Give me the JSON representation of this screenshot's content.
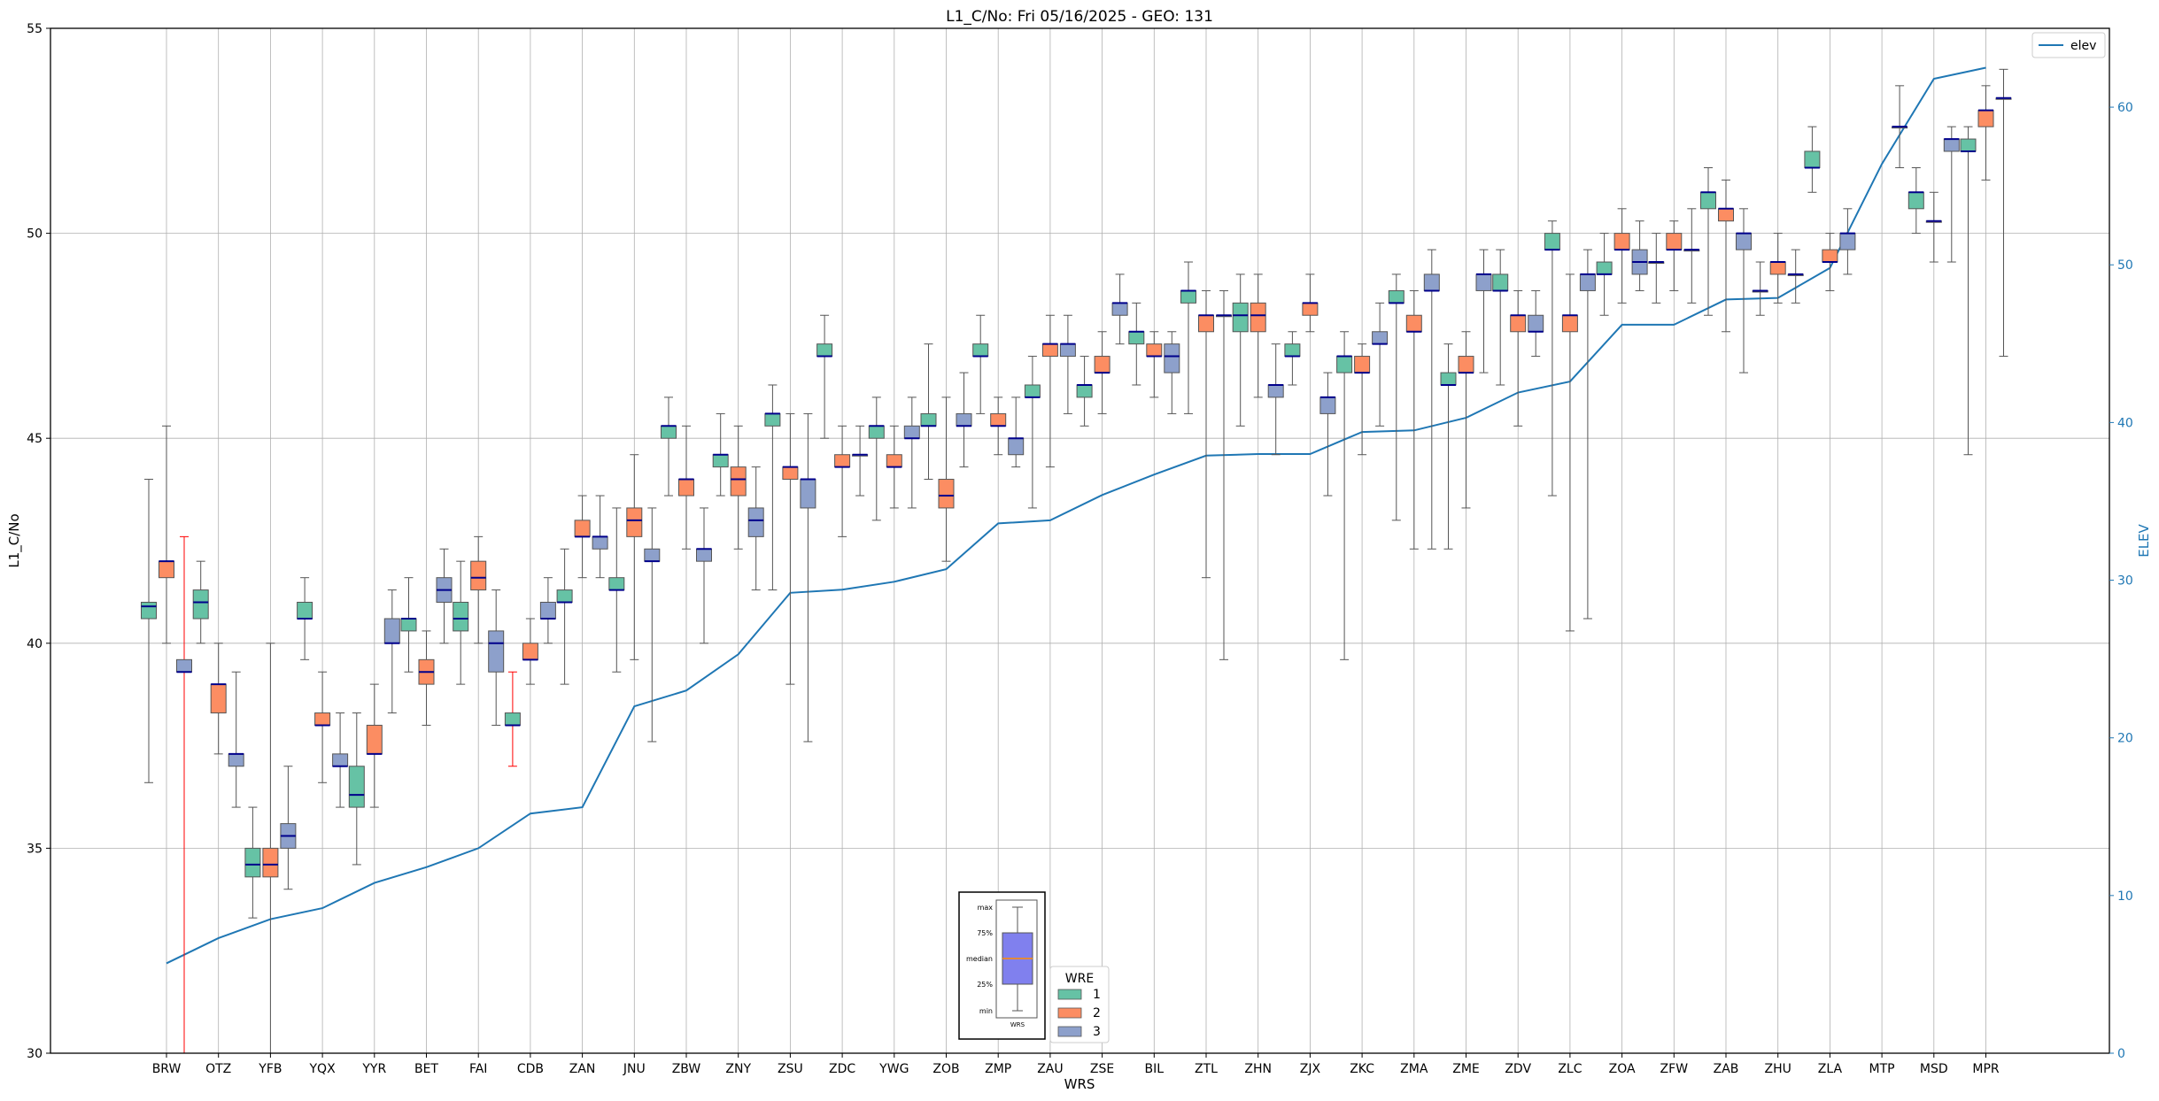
{
  "chart_data": {
    "type": "box",
    "title": "L1_C/No: Fri 05/16/2025 - GEO: 131",
    "xlabel": "WRS",
    "ylabel": "L1_C/No",
    "y2label": "ELEV",
    "ylim": [
      30,
      55
    ],
    "y2lim": [
      0,
      65
    ],
    "yticks": [
      30,
      35,
      40,
      45,
      50,
      55
    ],
    "y2ticks": [
      0,
      10,
      20,
      30,
      40,
      50,
      60
    ],
    "grid": true,
    "categories": [
      "BRW",
      "OTZ",
      "YFB",
      "YQX",
      "YYR",
      "BET",
      "FAI",
      "CDB",
      "ZAN",
      "JNU",
      "ZBW",
      "ZNY",
      "ZSU",
      "ZDC",
      "YWG",
      "ZOB",
      "ZMP",
      "ZAU",
      "ZSE",
      "BIL",
      "ZTL",
      "ZHN",
      "ZJX",
      "ZKC",
      "ZMA",
      "ZME",
      "ZDV",
      "ZLC",
      "ZOA",
      "ZFW",
      "ZAB",
      "ZHU",
      "ZLA",
      "MTP",
      "MSD",
      "MPR"
    ],
    "group_legend": {
      "title": "WRE",
      "placement": "bottom-center",
      "entries": [
        {
          "label": "1",
          "color": "#66c2a5"
        },
        {
          "label": "2",
          "color": "#fc8d62"
        },
        {
          "label": "3",
          "color": "#8da0cb"
        }
      ]
    },
    "line_legend": {
      "label": "elev",
      "color": "#1f77b4",
      "placement": "top-right"
    },
    "elev_series": {
      "name": "elev",
      "values": [
        5.7,
        7.3,
        8.5,
        9.2,
        10.8,
        11.8,
        13.0,
        15.2,
        15.6,
        22.0,
        23.0,
        25.3,
        29.2,
        29.4,
        29.9,
        30.7,
        33.6,
        33.8,
        35.4,
        36.7,
        37.9,
        38.0,
        38.0,
        39.4,
        39.5,
        40.3,
        41.9,
        42.6,
        46.2,
        46.2,
        47.8,
        47.9,
        49.8,
        56.4,
        61.8,
        62.5
      ]
    },
    "boxes": [
      {
        "station": "BRW",
        "wre": 1,
        "min": 36.6,
        "q1": 40.6,
        "median": 40.9,
        "q3": 41.0,
        "max": 44.0
      },
      {
        "station": "BRW",
        "wre": 2,
        "min": 40.0,
        "q1": 41.6,
        "median": 42.0,
        "q3": 42.0,
        "max": 45.3
      },
      {
        "station": "BRW",
        "wre": 3,
        "min": 30.0,
        "q1": 39.3,
        "median": 39.3,
        "q3": 39.6,
        "max": 42.6,
        "whisker_color": "#ff0000"
      },
      {
        "station": "OTZ",
        "wre": 1,
        "min": 40.0,
        "q1": 40.6,
        "median": 41.0,
        "q3": 41.3,
        "max": 42.0
      },
      {
        "station": "OTZ",
        "wre": 2,
        "min": 37.3,
        "q1": 38.3,
        "median": 39.0,
        "q3": 39.0,
        "max": 40.0
      },
      {
        "station": "OTZ",
        "wre": 3,
        "min": 36.0,
        "q1": 37.0,
        "median": 37.3,
        "q3": 37.3,
        "max": 39.3
      },
      {
        "station": "YFB",
        "wre": 1,
        "min": 33.3,
        "q1": 34.3,
        "median": 34.6,
        "q3": 35.0,
        "max": 36.0
      },
      {
        "station": "YFB",
        "wre": 2,
        "min": 30.0,
        "q1": 34.3,
        "median": 34.6,
        "q3": 35.0,
        "max": 40.0
      },
      {
        "station": "YFB",
        "wre": 3,
        "min": 34.0,
        "q1": 35.0,
        "median": 35.3,
        "q3": 35.6,
        "max": 37.0
      },
      {
        "station": "YQX",
        "wre": 1,
        "min": 39.6,
        "q1": 40.6,
        "median": 40.6,
        "q3": 41.0,
        "max": 41.6
      },
      {
        "station": "YQX",
        "wre": 2,
        "min": 36.6,
        "q1": 38.0,
        "median": 38.0,
        "q3": 38.3,
        "max": 39.3
      },
      {
        "station": "YQX",
        "wre": 3,
        "min": 36.0,
        "q1": 37.0,
        "median": 37.0,
        "q3": 37.3,
        "max": 38.3
      },
      {
        "station": "YYR",
        "wre": 1,
        "min": 34.6,
        "q1": 36.0,
        "median": 36.3,
        "q3": 37.0,
        "max": 38.3
      },
      {
        "station": "YYR",
        "wre": 2,
        "min": 36.0,
        "q1": 37.3,
        "median": 37.3,
        "q3": 38.0,
        "max": 39.0
      },
      {
        "station": "YYR",
        "wre": 3,
        "min": 38.3,
        "q1": 40.0,
        "median": 40.0,
        "q3": 40.6,
        "max": 41.3
      },
      {
        "station": "BET",
        "wre": 1,
        "min": 39.3,
        "q1": 40.3,
        "median": 40.6,
        "q3": 40.6,
        "max": 41.6
      },
      {
        "station": "BET",
        "wre": 2,
        "min": 38.0,
        "q1": 39.0,
        "median": 39.3,
        "q3": 39.6,
        "max": 40.3
      },
      {
        "station": "BET",
        "wre": 3,
        "min": 40.0,
        "q1": 41.0,
        "median": 41.3,
        "q3": 41.6,
        "max": 42.3
      },
      {
        "station": "FAI",
        "wre": 1,
        "min": 39.0,
        "q1": 40.3,
        "median": 40.6,
        "q3": 41.0,
        "max": 42.0
      },
      {
        "station": "FAI",
        "wre": 2,
        "min": 40.0,
        "q1": 41.3,
        "median": 41.6,
        "q3": 42.0,
        "max": 42.6
      },
      {
        "station": "FAI",
        "wre": 3,
        "min": 38.0,
        "q1": 39.3,
        "median": 40.0,
        "q3": 40.3,
        "max": 41.3
      },
      {
        "station": "CDB",
        "wre": 1,
        "min": 37.0,
        "q1": 38.0,
        "median": 38.0,
        "q3": 38.3,
        "max": 39.3,
        "whisker_color": "#ff0000"
      },
      {
        "station": "CDB",
        "wre": 2,
        "min": 39.0,
        "q1": 39.6,
        "median": 39.6,
        "q3": 40.0,
        "max": 40.6
      },
      {
        "station": "CDB",
        "wre": 3,
        "min": 40.0,
        "q1": 40.6,
        "median": 40.6,
        "q3": 41.0,
        "max": 41.6
      },
      {
        "station": "ZAN",
        "wre": 1,
        "min": 39.0,
        "q1": 41.0,
        "median": 41.0,
        "q3": 41.3,
        "max": 42.3
      },
      {
        "station": "ZAN",
        "wre": 2,
        "min": 41.6,
        "q1": 42.6,
        "median": 42.6,
        "q3": 43.0,
        "max": 43.6
      },
      {
        "station": "ZAN",
        "wre": 3,
        "min": 41.6,
        "q1": 42.3,
        "median": 42.6,
        "q3": 42.6,
        "max": 43.6
      },
      {
        "station": "JNU",
        "wre": 1,
        "min": 39.3,
        "q1": 41.3,
        "median": 41.3,
        "q3": 41.6,
        "max": 43.3
      },
      {
        "station": "JNU",
        "wre": 2,
        "min": 39.6,
        "q1": 42.6,
        "median": 43.0,
        "q3": 43.3,
        "max": 44.6
      },
      {
        "station": "JNU",
        "wre": 3,
        "min": 37.6,
        "q1": 42.0,
        "median": 42.0,
        "q3": 42.3,
        "max": 43.3
      },
      {
        "station": "ZBW",
        "wre": 1,
        "min": 43.6,
        "q1": 45.0,
        "median": 45.3,
        "q3": 45.3,
        "max": 46.0
      },
      {
        "station": "ZBW",
        "wre": 2,
        "min": 42.3,
        "q1": 43.6,
        "median": 44.0,
        "q3": 44.0,
        "max": 45.3
      },
      {
        "station": "ZBW",
        "wre": 3,
        "min": 40.0,
        "q1": 42.0,
        "median": 42.3,
        "q3": 42.3,
        "max": 43.3
      },
      {
        "station": "ZNY",
        "wre": 1,
        "min": 43.6,
        "q1": 44.3,
        "median": 44.6,
        "q3": 44.6,
        "max": 45.6
      },
      {
        "station": "ZNY",
        "wre": 2,
        "min": 42.3,
        "q1": 43.6,
        "median": 44.0,
        "q3": 44.3,
        "max": 45.3
      },
      {
        "station": "ZNY",
        "wre": 3,
        "min": 41.3,
        "q1": 42.6,
        "median": 43.0,
        "q3": 43.3,
        "max": 44.3
      },
      {
        "station": "ZSU",
        "wre": 1,
        "min": 41.3,
        "q1": 45.3,
        "median": 45.6,
        "q3": 45.6,
        "max": 46.3
      },
      {
        "station": "ZSU",
        "wre": 2,
        "min": 39.0,
        "q1": 44.0,
        "median": 44.3,
        "q3": 44.3,
        "max": 45.6
      },
      {
        "station": "ZSU",
        "wre": 3,
        "min": 37.6,
        "q1": 43.3,
        "median": 44.0,
        "q3": 44.0,
        "max": 45.6
      },
      {
        "station": "ZDC",
        "wre": 1,
        "min": 45.0,
        "q1": 47.0,
        "median": 47.0,
        "q3": 47.3,
        "max": 48.0
      },
      {
        "station": "ZDC",
        "wre": 2,
        "min": 42.6,
        "q1": 44.3,
        "median": 44.3,
        "q3": 44.6,
        "max": 45.3
      },
      {
        "station": "ZDC",
        "wre": 3,
        "min": 43.6,
        "q1": 44.6,
        "median": 44.6,
        "q3": 44.6,
        "max": 45.3
      },
      {
        "station": "YWG",
        "wre": 1,
        "min": 43.0,
        "q1": 45.0,
        "median": 45.3,
        "q3": 45.3,
        "max": 46.0
      },
      {
        "station": "YWG",
        "wre": 2,
        "min": 43.3,
        "q1": 44.3,
        "median": 44.3,
        "q3": 44.6,
        "max": 45.3
      },
      {
        "station": "YWG",
        "wre": 3,
        "min": 43.3,
        "q1": 45.0,
        "median": 45.0,
        "q3": 45.3,
        "max": 46.0
      },
      {
        "station": "ZOB",
        "wre": 1,
        "min": 44.0,
        "q1": 45.3,
        "median": 45.3,
        "q3": 45.6,
        "max": 47.3
      },
      {
        "station": "ZOB",
        "wre": 2,
        "min": 42.0,
        "q1": 43.3,
        "median": 43.6,
        "q3": 44.0,
        "max": 46.0
      },
      {
        "station": "ZOB",
        "wre": 3,
        "min": 44.3,
        "q1": 45.3,
        "median": 45.3,
        "q3": 45.6,
        "max": 46.6
      },
      {
        "station": "ZMP",
        "wre": 1,
        "min": 45.6,
        "q1": 47.0,
        "median": 47.0,
        "q3": 47.3,
        "max": 48.0
      },
      {
        "station": "ZMP",
        "wre": 2,
        "min": 44.6,
        "q1": 45.3,
        "median": 45.3,
        "q3": 45.6,
        "max": 46.0
      },
      {
        "station": "ZMP",
        "wre": 3,
        "min": 44.3,
        "q1": 44.6,
        "median": 45.0,
        "q3": 45.0,
        "max": 46.0
      },
      {
        "station": "ZAU",
        "wre": 1,
        "min": 43.3,
        "q1": 46.0,
        "median": 46.0,
        "q3": 46.3,
        "max": 47.0
      },
      {
        "station": "ZAU",
        "wre": 2,
        "min": 44.3,
        "q1": 47.0,
        "median": 47.3,
        "q3": 47.3,
        "max": 48.0
      },
      {
        "station": "ZAU",
        "wre": 3,
        "min": 45.6,
        "q1": 47.0,
        "median": 47.3,
        "q3": 47.3,
        "max": 48.0
      },
      {
        "station": "ZSE",
        "wre": 1,
        "min": 45.3,
        "q1": 46.0,
        "median": 46.3,
        "q3": 46.3,
        "max": 47.0
      },
      {
        "station": "ZSE",
        "wre": 2,
        "min": 45.6,
        "q1": 46.6,
        "median": 46.6,
        "q3": 47.0,
        "max": 47.6
      },
      {
        "station": "ZSE",
        "wre": 3,
        "min": 47.3,
        "q1": 48.0,
        "median": 48.3,
        "q3": 48.3,
        "max": 49.0
      },
      {
        "station": "BIL",
        "wre": 1,
        "min": 46.3,
        "q1": 47.3,
        "median": 47.6,
        "q3": 47.6,
        "max": 48.3
      },
      {
        "station": "BIL",
        "wre": 2,
        "min": 46.0,
        "q1": 47.0,
        "median": 47.0,
        "q3": 47.3,
        "max": 47.6
      },
      {
        "station": "BIL",
        "wre": 3,
        "min": 45.6,
        "q1": 46.6,
        "median": 47.0,
        "q3": 47.3,
        "max": 47.6
      },
      {
        "station": "ZTL",
        "wre": 1,
        "min": 45.6,
        "q1": 48.3,
        "median": 48.6,
        "q3": 48.6,
        "max": 49.3
      },
      {
        "station": "ZTL",
        "wre": 2,
        "min": 41.6,
        "q1": 47.6,
        "median": 48.0,
        "q3": 48.0,
        "max": 48.6
      },
      {
        "station": "ZTL",
        "wre": 3,
        "min": 39.6,
        "q1": 48.0,
        "median": 48.0,
        "q3": 48.0,
        "max": 48.6
      },
      {
        "station": "ZHN",
        "wre": 1,
        "min": 45.3,
        "q1": 47.6,
        "median": 48.0,
        "q3": 48.3,
        "max": 49.0
      },
      {
        "station": "ZHN",
        "wre": 2,
        "min": 46.0,
        "q1": 47.6,
        "median": 48.0,
        "q3": 48.3,
        "max": 49.0
      },
      {
        "station": "ZHN",
        "wre": 3,
        "min": 44.6,
        "q1": 46.0,
        "median": 46.3,
        "q3": 46.3,
        "max": 47.3
      },
      {
        "station": "ZJX",
        "wre": 1,
        "min": 46.3,
        "q1": 47.0,
        "median": 47.0,
        "q3": 47.3,
        "max": 47.6
      },
      {
        "station": "ZJX",
        "wre": 2,
        "min": 47.6,
        "q1": 48.0,
        "median": 48.3,
        "q3": 48.3,
        "max": 49.0
      },
      {
        "station": "ZJX",
        "wre": 3,
        "min": 43.6,
        "q1": 45.6,
        "median": 46.0,
        "q3": 46.0,
        "max": 46.6
      },
      {
        "station": "ZKC",
        "wre": 1,
        "min": 39.6,
        "q1": 46.6,
        "median": 47.0,
        "q3": 47.0,
        "max": 47.6
      },
      {
        "station": "ZKC",
        "wre": 2,
        "min": 44.6,
        "q1": 46.6,
        "median": 46.6,
        "q3": 47.0,
        "max": 47.3
      },
      {
        "station": "ZKC",
        "wre": 3,
        "min": 45.3,
        "q1": 47.3,
        "median": 47.3,
        "q3": 47.6,
        "max": 48.3
      },
      {
        "station": "ZMA",
        "wre": 1,
        "min": 43.0,
        "q1": 48.3,
        "median": 48.3,
        "q3": 48.6,
        "max": 49.0
      },
      {
        "station": "ZMA",
        "wre": 2,
        "min": 42.3,
        "q1": 47.6,
        "median": 47.6,
        "q3": 48.0,
        "max": 48.6
      },
      {
        "station": "ZMA",
        "wre": 3,
        "min": 42.3,
        "q1": 48.6,
        "median": 48.6,
        "q3": 49.0,
        "max": 49.6
      },
      {
        "station": "ZME",
        "wre": 1,
        "min": 42.3,
        "q1": 46.3,
        "median": 46.3,
        "q3": 46.6,
        "max": 47.3
      },
      {
        "station": "ZME",
        "wre": 2,
        "min": 43.3,
        "q1": 46.6,
        "median": 46.6,
        "q3": 47.0,
        "max": 47.6
      },
      {
        "station": "ZME",
        "wre": 3,
        "min": 46.6,
        "q1": 48.6,
        "median": 49.0,
        "q3": 49.0,
        "max": 49.6
      },
      {
        "station": "ZDV",
        "wre": 1,
        "min": 46.3,
        "q1": 48.6,
        "median": 48.6,
        "q3": 49.0,
        "max": 49.6
      },
      {
        "station": "ZDV",
        "wre": 2,
        "min": 45.3,
        "q1": 47.6,
        "median": 48.0,
        "q3": 48.0,
        "max": 48.6
      },
      {
        "station": "ZDV",
        "wre": 3,
        "min": 47.0,
        "q1": 47.6,
        "median": 47.6,
        "q3": 48.0,
        "max": 48.6
      },
      {
        "station": "ZLC",
        "wre": 1,
        "min": 43.6,
        "q1": 49.6,
        "median": 49.6,
        "q3": 50.0,
        "max": 50.3
      },
      {
        "station": "ZLC",
        "wre": 2,
        "min": 40.3,
        "q1": 47.6,
        "median": 48.0,
        "q3": 48.0,
        "max": 49.0
      },
      {
        "station": "ZLC",
        "wre": 3,
        "min": 40.6,
        "q1": 48.6,
        "median": 49.0,
        "q3": 49.0,
        "max": 49.6
      },
      {
        "station": "ZOA",
        "wre": 1,
        "min": 48.0,
        "q1": 49.0,
        "median": 49.0,
        "q3": 49.3,
        "max": 50.0
      },
      {
        "station": "ZOA",
        "wre": 2,
        "min": 48.3,
        "q1": 49.6,
        "median": 49.6,
        "q3": 50.0,
        "max": 50.6
      },
      {
        "station": "ZOA",
        "wre": 3,
        "min": 48.6,
        "q1": 49.0,
        "median": 49.3,
        "q3": 49.6,
        "max": 50.3
      },
      {
        "station": "ZFW",
        "wre": 1,
        "min": 48.3,
        "q1": 49.3,
        "median": 49.3,
        "q3": 49.3,
        "max": 50.0
      },
      {
        "station": "ZFW",
        "wre": 2,
        "min": 48.6,
        "q1": 49.6,
        "median": 49.6,
        "q3": 50.0,
        "max": 50.3
      },
      {
        "station": "ZFW",
        "wre": 3,
        "min": 48.3,
        "q1": 49.6,
        "median": 49.6,
        "q3": 49.6,
        "max": 50.6
      },
      {
        "station": "ZAB",
        "wre": 1,
        "min": 48.0,
        "q1": 50.6,
        "median": 51.0,
        "q3": 51.0,
        "max": 51.6
      },
      {
        "station": "ZAB",
        "wre": 2,
        "min": 47.6,
        "q1": 50.3,
        "median": 50.6,
        "q3": 50.6,
        "max": 51.3
      },
      {
        "station": "ZAB",
        "wre": 3,
        "min": 46.6,
        "q1": 49.6,
        "median": 50.0,
        "q3": 50.0,
        "max": 50.6
      },
      {
        "station": "ZHU",
        "wre": 1,
        "min": 48.0,
        "q1": 48.6,
        "median": 48.6,
        "q3": 48.6,
        "max": 49.3
      },
      {
        "station": "ZHU",
        "wre": 2,
        "min": 48.3,
        "q1": 49.0,
        "median": 49.3,
        "q3": 49.3,
        "max": 50.0
      },
      {
        "station": "ZHU",
        "wre": 3,
        "min": 48.3,
        "q1": 49.0,
        "median": 49.0,
        "q3": 49.0,
        "max": 49.6
      },
      {
        "station": "ZLA",
        "wre": 1,
        "min": 51.0,
        "q1": 51.6,
        "median": 51.6,
        "q3": 52.0,
        "max": 52.6
      },
      {
        "station": "ZLA",
        "wre": 2,
        "min": 48.6,
        "q1": 49.3,
        "median": 49.3,
        "q3": 49.6,
        "max": 50.0
      },
      {
        "station": "ZLA",
        "wre": 3,
        "min": 49.0,
        "q1": 49.6,
        "median": 50.0,
        "q3": 50.0,
        "max": 50.6
      },
      {
        "station": "MTP",
        "wre": 3,
        "min": 51.6,
        "q1": 52.6,
        "median": 52.6,
        "q3": 52.6,
        "max": 53.6
      },
      {
        "station": "MSD",
        "wre": 1,
        "min": 50.0,
        "q1": 50.6,
        "median": 51.0,
        "q3": 51.0,
        "max": 51.6
      },
      {
        "station": "MSD",
        "wre": 2,
        "min": 49.3,
        "q1": 50.3,
        "median": 50.3,
        "q3": 50.3,
        "max": 51.0
      },
      {
        "station": "MSD",
        "wre": 3,
        "min": 49.3,
        "q1": 52.0,
        "median": 52.3,
        "q3": 52.3,
        "max": 52.6
      },
      {
        "station": "MPR",
        "wre": 1,
        "min": 44.6,
        "q1": 52.0,
        "median": 52.0,
        "q3": 52.3,
        "max": 52.6
      },
      {
        "station": "MPR",
        "wre": 2,
        "min": 51.3,
        "q1": 52.6,
        "median": 53.0,
        "q3": 53.0,
        "max": 53.6
      },
      {
        "station": "MPR",
        "wre": 3,
        "min": 47.0,
        "q1": 53.3,
        "median": 53.3,
        "q3": 53.3,
        "max": 54.0
      }
    ],
    "inset_key": {
      "labels": [
        "max",
        "75%",
        "median",
        "25%",
        "min"
      ],
      "caption": "WRS",
      "box_color": "#8080ee",
      "median_color": "#ff8c00"
    }
  }
}
